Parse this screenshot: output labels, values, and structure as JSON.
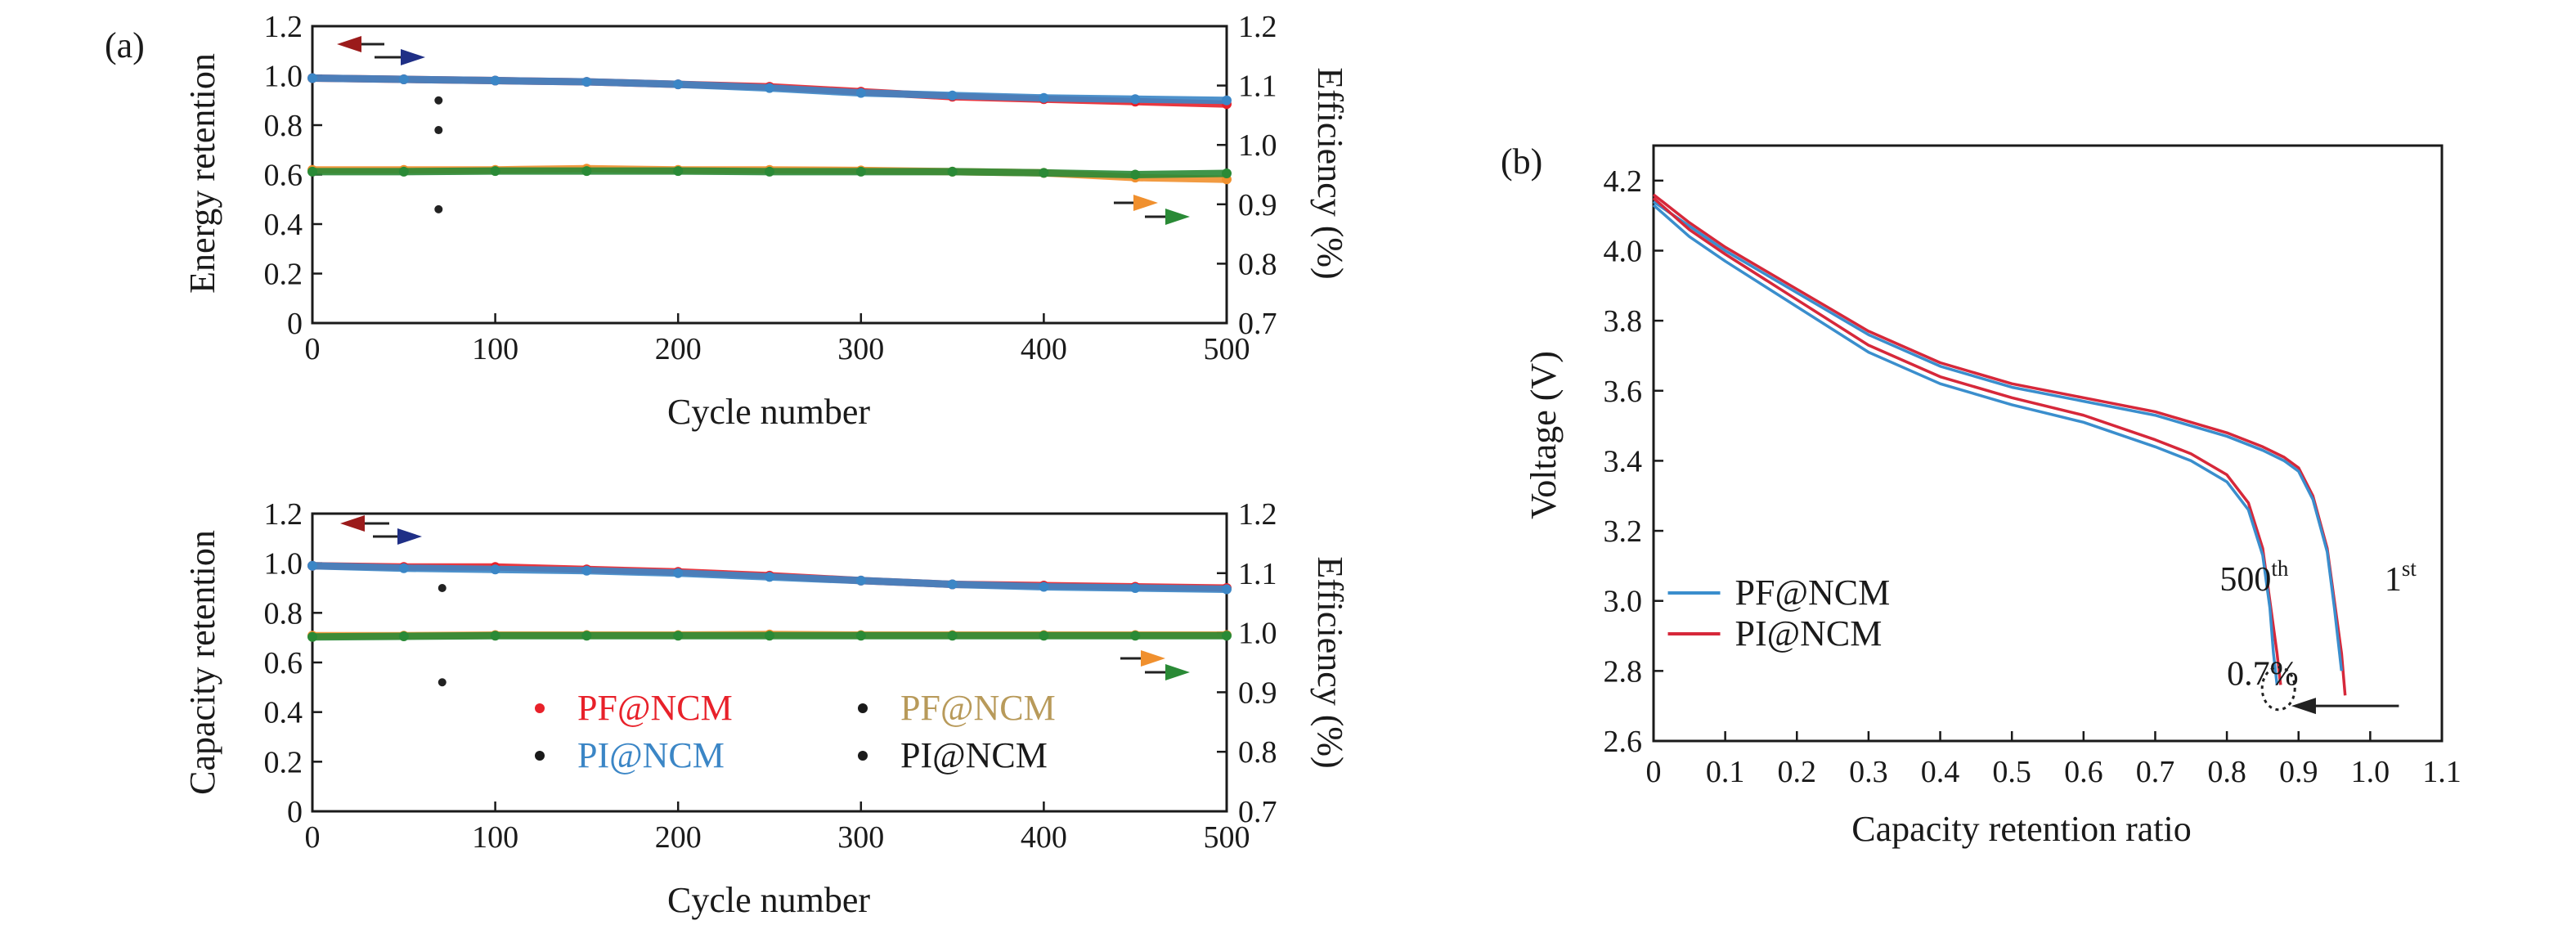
{
  "colors": {
    "pf_discharge": "#e8212a",
    "pi_discharge": "#3b86c6",
    "pf_efficiency": "#f0902e",
    "pi_efficiency": "#2a8a36",
    "legend_pf_eff_text": "#b89a5a",
    "left_arrow_red": "#9b1b1b",
    "right_arrow_blue": "#1f2f86",
    "curve_pf": "#3a8ecd",
    "curve_pi": "#d6283a",
    "axis": "#1a1a1a"
  },
  "chart_data": [
    {
      "panel_label": "(a)",
      "type": "scatter",
      "xlabel": "Cycle number",
      "ylabel": "Energy retention",
      "ylabel_right": "Efficiency (%)",
      "xlim": [
        0,
        500
      ],
      "ylim": [
        0,
        1.2
      ],
      "ylim_right": [
        0.7,
        1.2
      ],
      "x_ticks": [
        "0",
        "100",
        "200",
        "300",
        "400",
        "500"
      ],
      "y_ticks": [
        "0",
        "0.2",
        "0.4",
        "0.6",
        "0.8",
        "1.0",
        "1.2"
      ],
      "y_ticks_right": [
        "0.7",
        "0.8",
        "0.9",
        "1.0",
        "1.1",
        "1.2"
      ],
      "series": [
        {
          "axis": "left",
          "color_key": "pf_discharge",
          "x": [
            0,
            50,
            100,
            150,
            200,
            250,
            300,
            350,
            400,
            450,
            500
          ],
          "y": [
            0.99,
            0.985,
            0.98,
            0.975,
            0.965,
            0.955,
            0.935,
            0.915,
            0.905,
            0.895,
            0.885
          ]
        },
        {
          "axis": "left",
          "color_key": "pi_discharge",
          "x": [
            0,
            50,
            100,
            150,
            200,
            250,
            300,
            350,
            400,
            450,
            500
          ],
          "y": [
            0.99,
            0.985,
            0.98,
            0.975,
            0.965,
            0.95,
            0.93,
            0.92,
            0.91,
            0.905,
            0.9
          ]
        },
        {
          "axis": "right",
          "color_key": "pf_efficiency",
          "x": [
            0,
            50,
            100,
            150,
            200,
            250,
            300,
            350,
            400,
            450,
            500
          ],
          "y": [
            0.958,
            0.958,
            0.958,
            0.96,
            0.958,
            0.958,
            0.957,
            0.955,
            0.953,
            0.945,
            0.942
          ]
        },
        {
          "axis": "right",
          "color_key": "pi_efficiency",
          "x": [
            0,
            50,
            100,
            150,
            200,
            250,
            300,
            350,
            400,
            450,
            500
          ],
          "y": [
            0.955,
            0.955,
            0.956,
            0.956,
            0.956,
            0.955,
            0.955,
            0.955,
            0.953,
            0.95,
            0.952
          ]
        }
      ],
      "outliers": [
        {
          "axis": "left",
          "x": 69,
          "y": 0.9
        },
        {
          "axis": "left",
          "x": 69,
          "y": 0.78
        },
        {
          "axis": "left",
          "x": 69,
          "y": 0.46
        }
      ]
    },
    {
      "type": "scatter",
      "xlabel": "Cycle number",
      "ylabel": "Capacity retention",
      "ylabel_right": "Efficiency (%)",
      "xlim": [
        0,
        500
      ],
      "ylim": [
        0,
        1.2
      ],
      "ylim_right": [
        0.7,
        1.2
      ],
      "x_ticks": [
        "0",
        "100",
        "200",
        "300",
        "400",
        "500"
      ],
      "y_ticks": [
        "0",
        "0.2",
        "0.4",
        "0.6",
        "0.8",
        "1.0",
        "1.2"
      ],
      "y_ticks_right": [
        "0.7",
        "0.8",
        "0.9",
        "1.0",
        "1.1",
        "1.2"
      ],
      "legend": [
        {
          "label": "PF@NCM",
          "color_key": "pf_discharge",
          "dot": "pf_discharge"
        },
        {
          "label": "PF@NCM",
          "color_key": "legend_pf_eff_text",
          "dot": "axis"
        },
        {
          "label": "PI@NCM",
          "color_key": "pi_discharge",
          "dot": "axis"
        },
        {
          "label": "PI@NCM",
          "color_key": "axis",
          "dot": "axis"
        }
      ],
      "series": [
        {
          "axis": "left",
          "color_key": "pf_discharge",
          "x": [
            0,
            50,
            100,
            150,
            200,
            250,
            300,
            350,
            400,
            450,
            500
          ],
          "y": [
            0.99,
            0.985,
            0.985,
            0.975,
            0.965,
            0.95,
            0.93,
            0.915,
            0.91,
            0.905,
            0.9
          ]
        },
        {
          "axis": "left",
          "color_key": "pi_discharge",
          "x": [
            0,
            50,
            100,
            150,
            200,
            250,
            300,
            350,
            400,
            450,
            500
          ],
          "y": [
            0.99,
            0.98,
            0.975,
            0.97,
            0.96,
            0.945,
            0.93,
            0.915,
            0.905,
            0.9,
            0.895
          ]
        },
        {
          "axis": "right",
          "color_key": "pf_efficiency",
          "x": [
            0,
            50,
            100,
            150,
            200,
            250,
            300,
            350,
            400,
            450,
            500
          ],
          "y": [
            0.995,
            0.995,
            0.996,
            0.996,
            0.996,
            0.997,
            0.996,
            0.996,
            0.996,
            0.996,
            0.996
          ]
        },
        {
          "axis": "right",
          "color_key": "pi_efficiency",
          "x": [
            0,
            50,
            100,
            150,
            200,
            250,
            300,
            350,
            400,
            450,
            500
          ],
          "y": [
            0.993,
            0.994,
            0.995,
            0.995,
            0.995,
            0.995,
            0.995,
            0.995,
            0.995,
            0.995,
            0.995
          ]
        }
      ],
      "outliers": [
        {
          "axis": "left",
          "x": 71,
          "y": 0.9
        },
        {
          "axis": "left",
          "x": 71,
          "y": 0.52
        }
      ]
    },
    {
      "panel_label": "(b)",
      "type": "line",
      "xlabel": "Capacity retention ratio",
      "ylabel": "Voltage (V)",
      "xlim": [
        0,
        1.1
      ],
      "ylim": [
        2.6,
        4.3
      ],
      "x_ticks": [
        "0",
        "0.1",
        "0.2",
        "0.3",
        "0.4",
        "0.5",
        "0.6",
        "0.7",
        "0.8",
        "0.9",
        "1.0",
        "1.1"
      ],
      "y_ticks": [
        "2.6",
        "2.8",
        "3.0",
        "3.2",
        "3.4",
        "3.6",
        "3.8",
        "4.0",
        "4.2"
      ],
      "legend": [
        {
          "label": "PF@NCM",
          "color_key": "curve_pf"
        },
        {
          "label": "PI@NCM",
          "color_key": "curve_pi"
        }
      ],
      "series": [
        {
          "color_key": "curve_pi",
          "x": [
            0,
            0.05,
            0.1,
            0.2,
            0.3,
            0.4,
            0.5,
            0.6,
            0.7,
            0.8,
            0.85,
            0.88,
            0.9,
            0.92,
            0.94,
            0.95,
            0.96,
            0.965
          ],
          "y": [
            4.16,
            4.08,
            4.01,
            3.89,
            3.77,
            3.68,
            3.62,
            3.58,
            3.54,
            3.48,
            3.44,
            3.41,
            3.38,
            3.3,
            3.15,
            3.0,
            2.85,
            2.73
          ]
        },
        {
          "color_key": "curve_pf",
          "x": [
            0,
            0.05,
            0.1,
            0.2,
            0.3,
            0.4,
            0.5,
            0.6,
            0.7,
            0.8,
            0.85,
            0.88,
            0.9,
            0.92,
            0.94,
            0.95,
            0.96
          ],
          "y": [
            4.14,
            4.07,
            4.0,
            3.88,
            3.76,
            3.67,
            3.61,
            3.57,
            3.53,
            3.47,
            3.43,
            3.4,
            3.37,
            3.29,
            3.14,
            2.98,
            2.8
          ]
        },
        {
          "color_key": "curve_pi",
          "x": [
            0,
            0.05,
            0.1,
            0.2,
            0.3,
            0.4,
            0.5,
            0.6,
            0.7,
            0.75,
            0.8,
            0.83,
            0.85,
            0.86,
            0.87,
            0.875
          ],
          "y": [
            4.15,
            4.06,
            3.99,
            3.86,
            3.73,
            3.64,
            3.58,
            3.53,
            3.46,
            3.42,
            3.36,
            3.28,
            3.15,
            3.0,
            2.85,
            2.76
          ]
        },
        {
          "color_key": "curve_pf",
          "x": [
            0,
            0.05,
            0.1,
            0.2,
            0.3,
            0.4,
            0.5,
            0.6,
            0.7,
            0.75,
            0.8,
            0.83,
            0.85,
            0.86,
            0.865,
            0.87
          ],
          "y": [
            4.13,
            4.04,
            3.97,
            3.84,
            3.71,
            3.62,
            3.56,
            3.51,
            3.44,
            3.4,
            3.34,
            3.26,
            3.13,
            2.98,
            2.85,
            2.76
          ]
        }
      ],
      "annotations": [
        {
          "text": "500",
          "sup": "th",
          "x": 0.79,
          "y": 3.03
        },
        {
          "text": "1",
          "sup": "st",
          "x": 1.02,
          "y": 3.03
        },
        {
          "text": "0.7%",
          "x": 0.8,
          "y": 2.76
        }
      ]
    }
  ]
}
